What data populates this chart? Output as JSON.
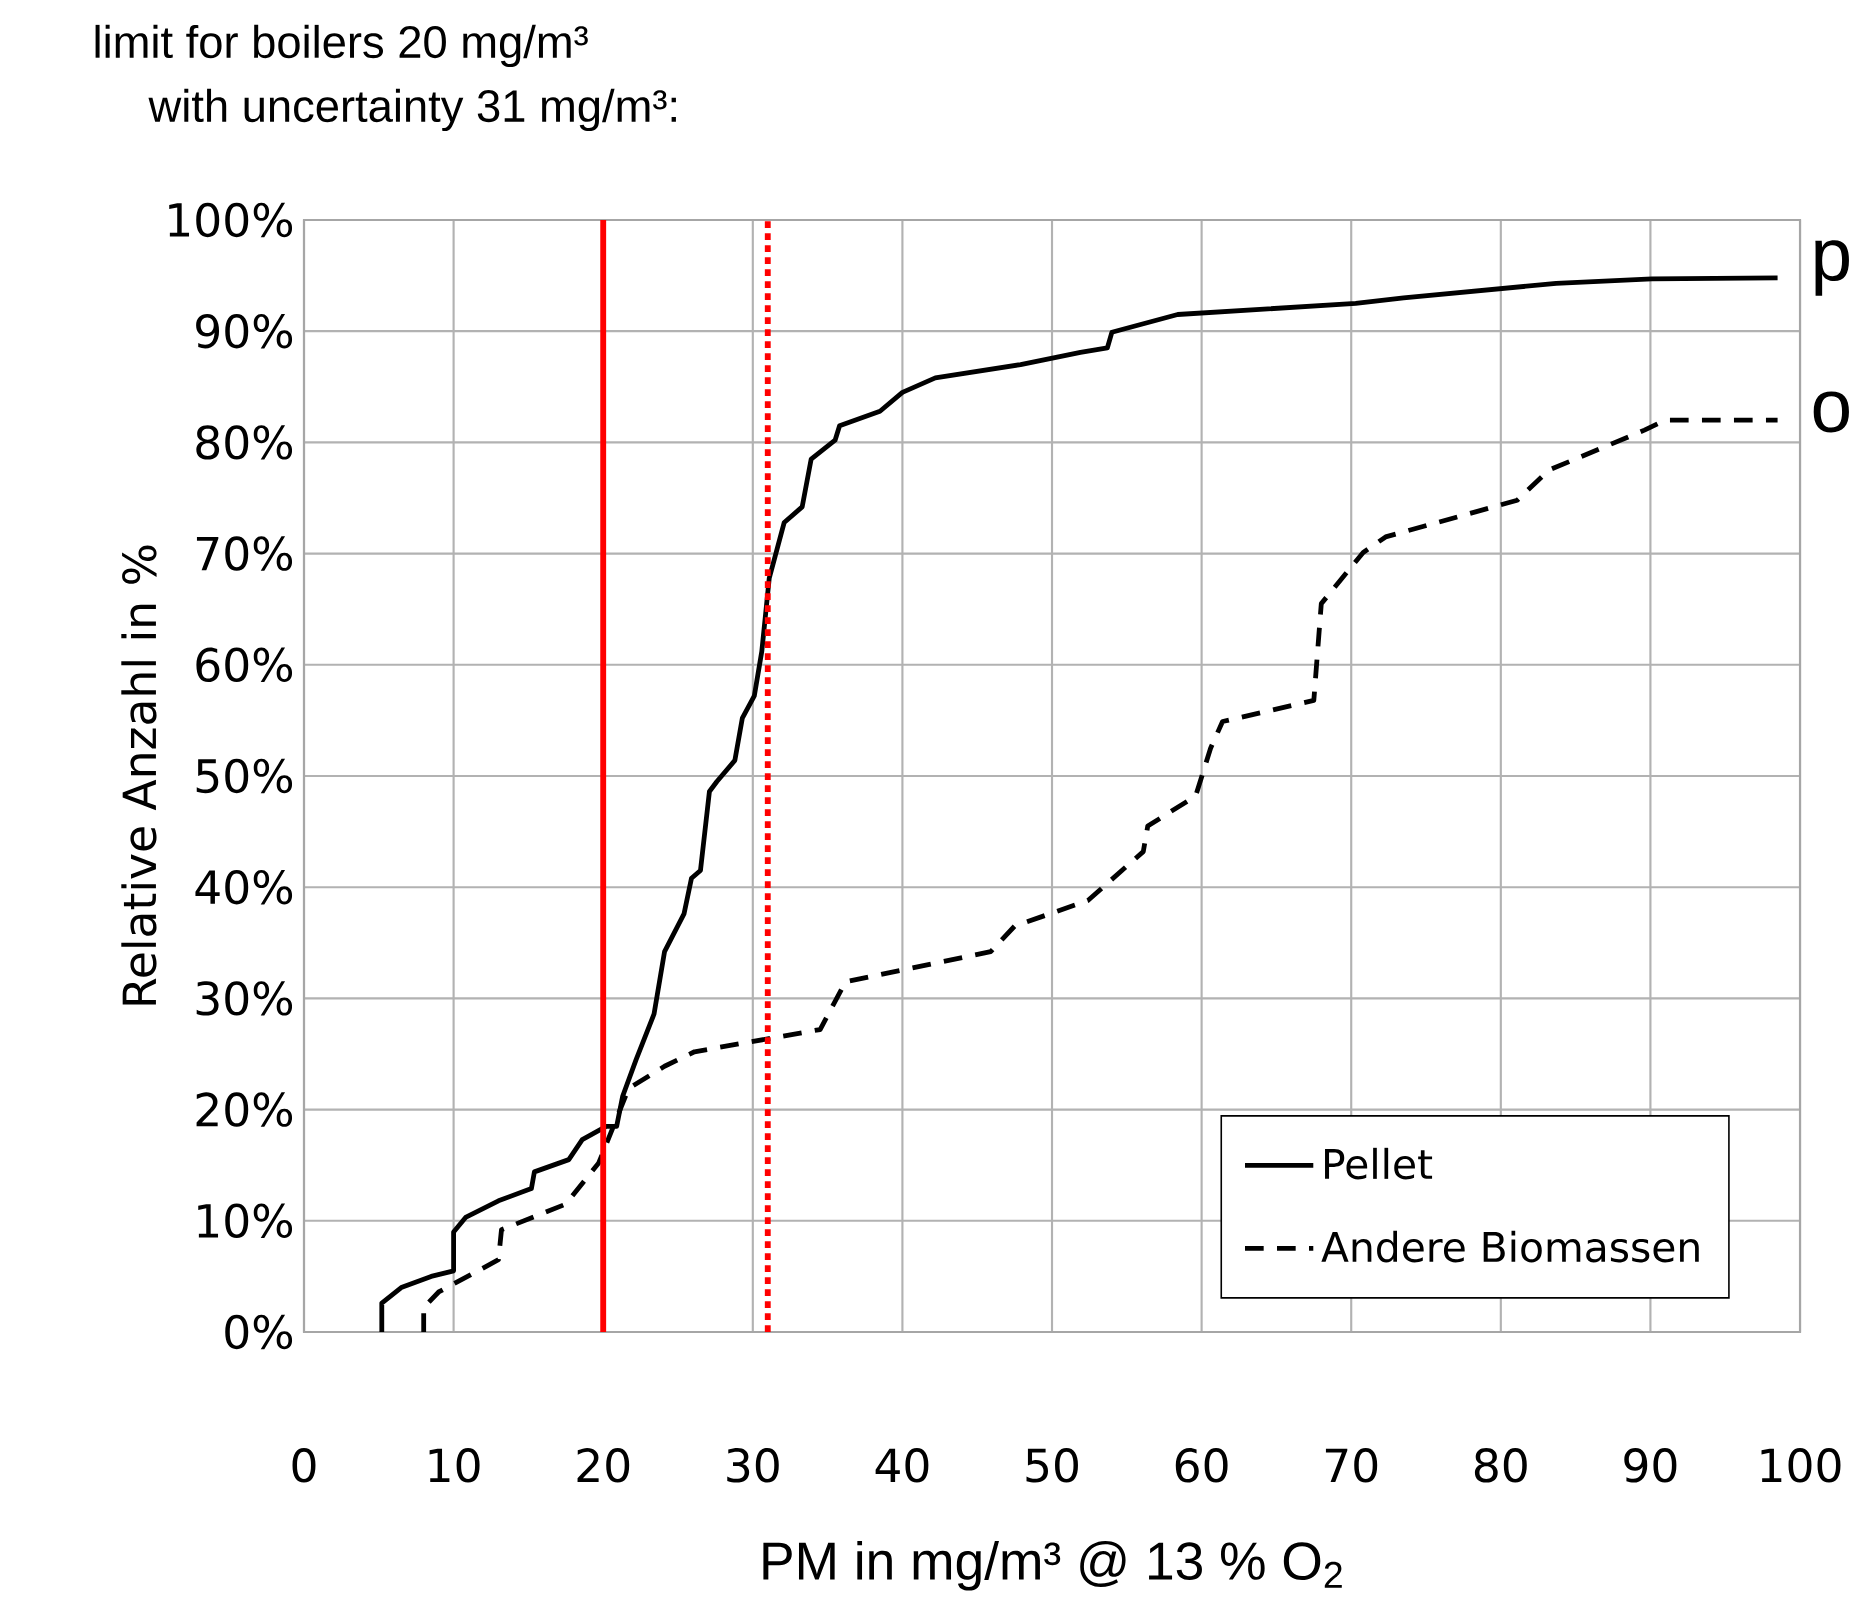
{
  "chart_data": {
    "type": "line",
    "title": "limit for boilers 20 mg/m³",
    "subtitle": "with uncertainty 31 mg/m³:",
    "xlabel": "PM in mg/m³ @ 13 % O$_{2}$",
    "ylabel": "Relative Anzahl in %",
    "xlim": [
      0,
      100
    ],
    "xticks": [
      0,
      10,
      20,
      30,
      40,
      50,
      60,
      70,
      80,
      90,
      100
    ],
    "ylim": [
      0,
      100
    ],
    "yticks": [
      {
        "value": 0,
        "label": "0%"
      },
      {
        "value": 10,
        "label": "10%"
      },
      {
        "value": 20,
        "label": "20%"
      },
      {
        "value": 30,
        "label": "30%"
      },
      {
        "value": 40,
        "label": "40%"
      },
      {
        "value": 50,
        "label": "50%"
      },
      {
        "value": 60,
        "label": "60%"
      },
      {
        "value": 70,
        "label": "70%"
      },
      {
        "value": 80,
        "label": "80%"
      },
      {
        "value": 90,
        "label": "90%"
      },
      {
        "value": 100,
        "label": "100%"
      }
    ],
    "grid": true,
    "legend": "bottom right",
    "marker": "none",
    "series": [
      {
        "name": "Pellet",
        "color": "#000000",
        "line_style": "solid",
        "x": [
          5.2,
          5.2,
          6.5,
          8.5,
          10.0,
          10.0,
          10.8,
          13.0,
          15.2,
          15.4,
          17.7,
          18.6,
          20.2,
          20.9,
          21.3,
          22.2,
          23.4,
          24.1,
          25.4,
          25.9,
          26.5,
          27.1,
          27.6,
          28.8,
          29.3,
          30.1,
          30.6,
          31.1,
          31.5,
          32.1,
          33.3,
          33.9,
          35.5,
          35.8,
          38.5,
          40.0,
          42.2,
          47.9,
          51.9,
          53.7,
          54.0,
          58.4,
          70.3,
          73.5,
          83.7,
          90.1,
          98.5
        ],
        "values": [
          0,
          2.6,
          4,
          5,
          5.5,
          9,
          10.3,
          11.8,
          12.9,
          14.4,
          15.5,
          17.3,
          18.5,
          18.5,
          21.2,
          24.5,
          28.6,
          34.2,
          37.6,
          40.8,
          41.5,
          48.6,
          49.5,
          51.4,
          55.2,
          57.2,
          61.2,
          67.8,
          69.8,
          72.8,
          74.2,
          78.5,
          80.2,
          81.5,
          82.8,
          84.5,
          85.8,
          87.0,
          88.1,
          88.5,
          89.9,
          91.5,
          92.5,
          93.0,
          94.3,
          94.7,
          94.8
        ]
      },
      {
        "name": "Andere Biomassen",
        "color": "#000000",
        "line_style": "dashed",
        "x": [
          8.0,
          8.0,
          9.0,
          13.0,
          13.2,
          17.5,
          19.7,
          21.7,
          24.1,
          26.1,
          34.5,
          36.2,
          45.9,
          47.5,
          52.4,
          56.1,
          56.4,
          59.6,
          60.6,
          61.4,
          67.5,
          68.0,
          70.8,
          72.3,
          81.1,
          83.2,
          89.6,
          91.0,
          98.5
        ],
        "values": [
          0,
          2.2,
          3.6,
          6.5,
          9.2,
          11.5,
          15.2,
          21.9,
          23.9,
          25.2,
          27.2,
          31.5,
          34.2,
          36.5,
          38.8,
          43.2,
          45.5,
          48.2,
          52.5,
          54.9,
          56.8,
          65.5,
          70.1,
          71.5,
          74.8,
          77.5,
          81.1,
          82.0,
          82.0
        ]
      }
    ],
    "ref_lines": [
      {
        "axis": "x",
        "value": 20,
        "color": "#ff0000",
        "line_style": "solid"
      },
      {
        "axis": "x",
        "value": 31,
        "color": "#ff0000",
        "line_style": "dotted"
      }
    ],
    "annotations": [
      "p",
      "o"
    ]
  }
}
